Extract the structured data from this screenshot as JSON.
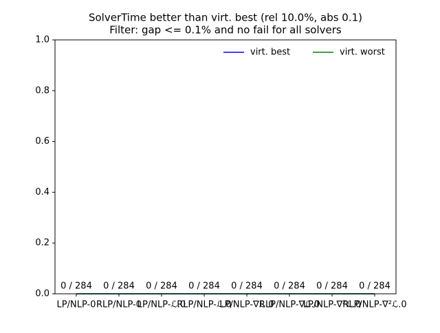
{
  "chart_data": {
    "type": "bar",
    "title": [
      "SolverTime better than virt. best (rel 10.0%, abs 0.1)",
      "Filter: gap <= 0.1% and no fail for all solvers"
    ],
    "categories": [
      "LP/NLP-0",
      "RLP/NLP-0",
      "LP/NLP-ℒ.0",
      "RLP/NLP-ℒ.0",
      "LP/NLP-∇ℒ.0",
      "RLP/NLP-∇ℒ.0",
      "LP/NLP-∇²ℒ.0",
      "RLP/NLP-∇²ℒ.0"
    ],
    "values": [
      0,
      0,
      0,
      0,
      0,
      0,
      0,
      0
    ],
    "value_labels": [
      "0 / 284",
      "0 / 284",
      "0 / 284",
      "0 / 284",
      "0 / 284",
      "0 / 284",
      "0 / 284",
      "0 / 284"
    ],
    "series": [
      {
        "name": "virt. best",
        "color": "#0000ff",
        "values": [
          0,
          0,
          0,
          0,
          0,
          0,
          0,
          0
        ]
      },
      {
        "name": "virt. worst",
        "color": "#008000",
        "values": [
          0,
          0,
          0,
          0,
          0,
          0,
          0,
          0
        ]
      }
    ],
    "ylim": [
      0,
      1
    ],
    "yticks": [
      {
        "value": 0,
        "label": "0.0"
      },
      {
        "value": 0.2,
        "label": "0.2"
      },
      {
        "value": 0.4,
        "label": "0.4"
      },
      {
        "value": 0.6,
        "label": "0.6"
      },
      {
        "value": 0.8,
        "label": "0.8"
      },
      {
        "value": 1,
        "label": "1.0"
      }
    ],
    "legend": "upper right"
  }
}
